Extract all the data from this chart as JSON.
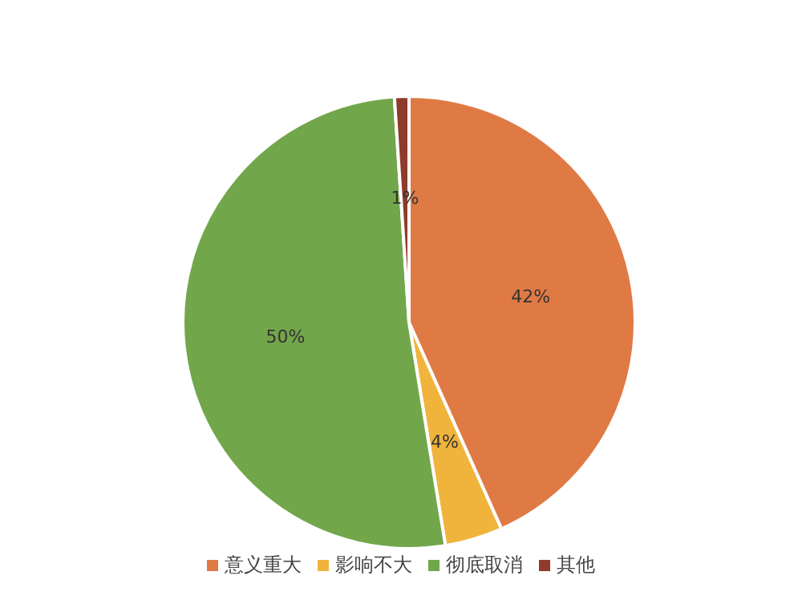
{
  "chart_data": {
    "type": "pie",
    "categories": [
      "意义重大",
      "影响不大",
      "彻底取消",
      "其他"
    ],
    "values": [
      42,
      4,
      50,
      1
    ],
    "value_labels": [
      "42%",
      "4%",
      "50%",
      "1%"
    ],
    "colors": [
      "#e07a45",
      "#f0b43c",
      "#72a64b",
      "#8e3b2b"
    ],
    "legend": "bottom"
  }
}
